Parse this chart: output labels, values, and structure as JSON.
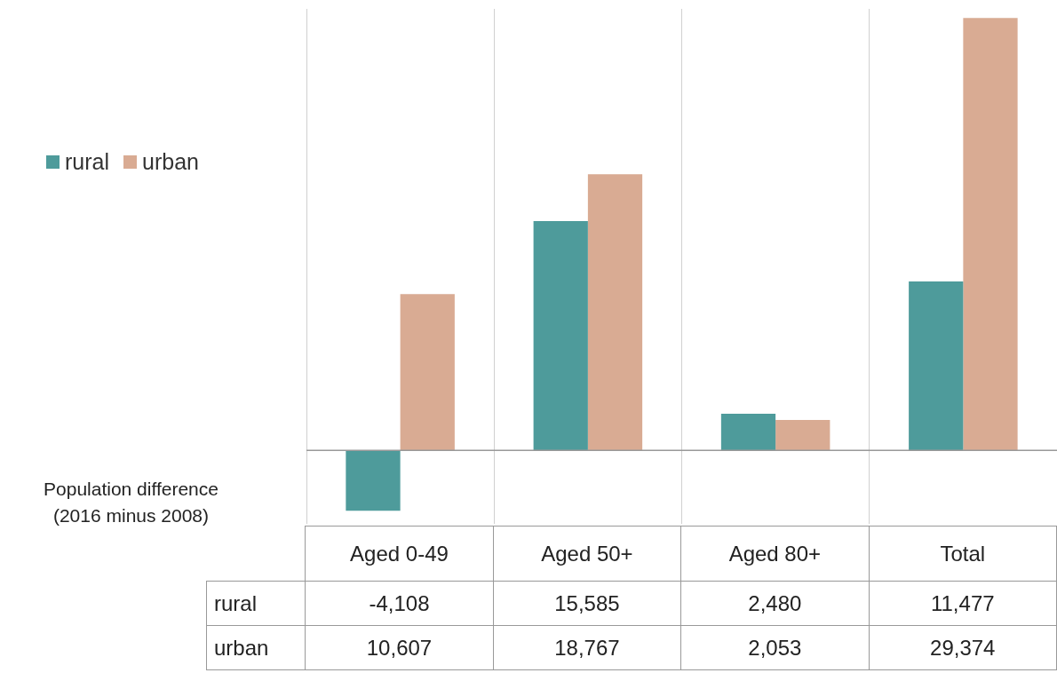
{
  "chart_data": {
    "type": "bar",
    "ylabel": "Population difference (2016 minus 2008)",
    "categories": [
      "Aged 0-49",
      "Aged 50+",
      "Aged 80+",
      "Total"
    ],
    "series": [
      {
        "name": "rural",
        "color": "#4e9b9b",
        "values": [
          -4108,
          15585,
          2480,
          11477
        ],
        "value_labels": [
          "-4,108",
          "15,585",
          "2,480",
          "11,477"
        ]
      },
      {
        "name": "urban",
        "color": "#d9ab93",
        "values": [
          10607,
          18767,
          2053,
          29374
        ],
        "value_labels": [
          "10,607",
          "18,767",
          "2,053",
          "29,374"
        ]
      }
    ],
    "grid": "x",
    "legend": "top left"
  }
}
